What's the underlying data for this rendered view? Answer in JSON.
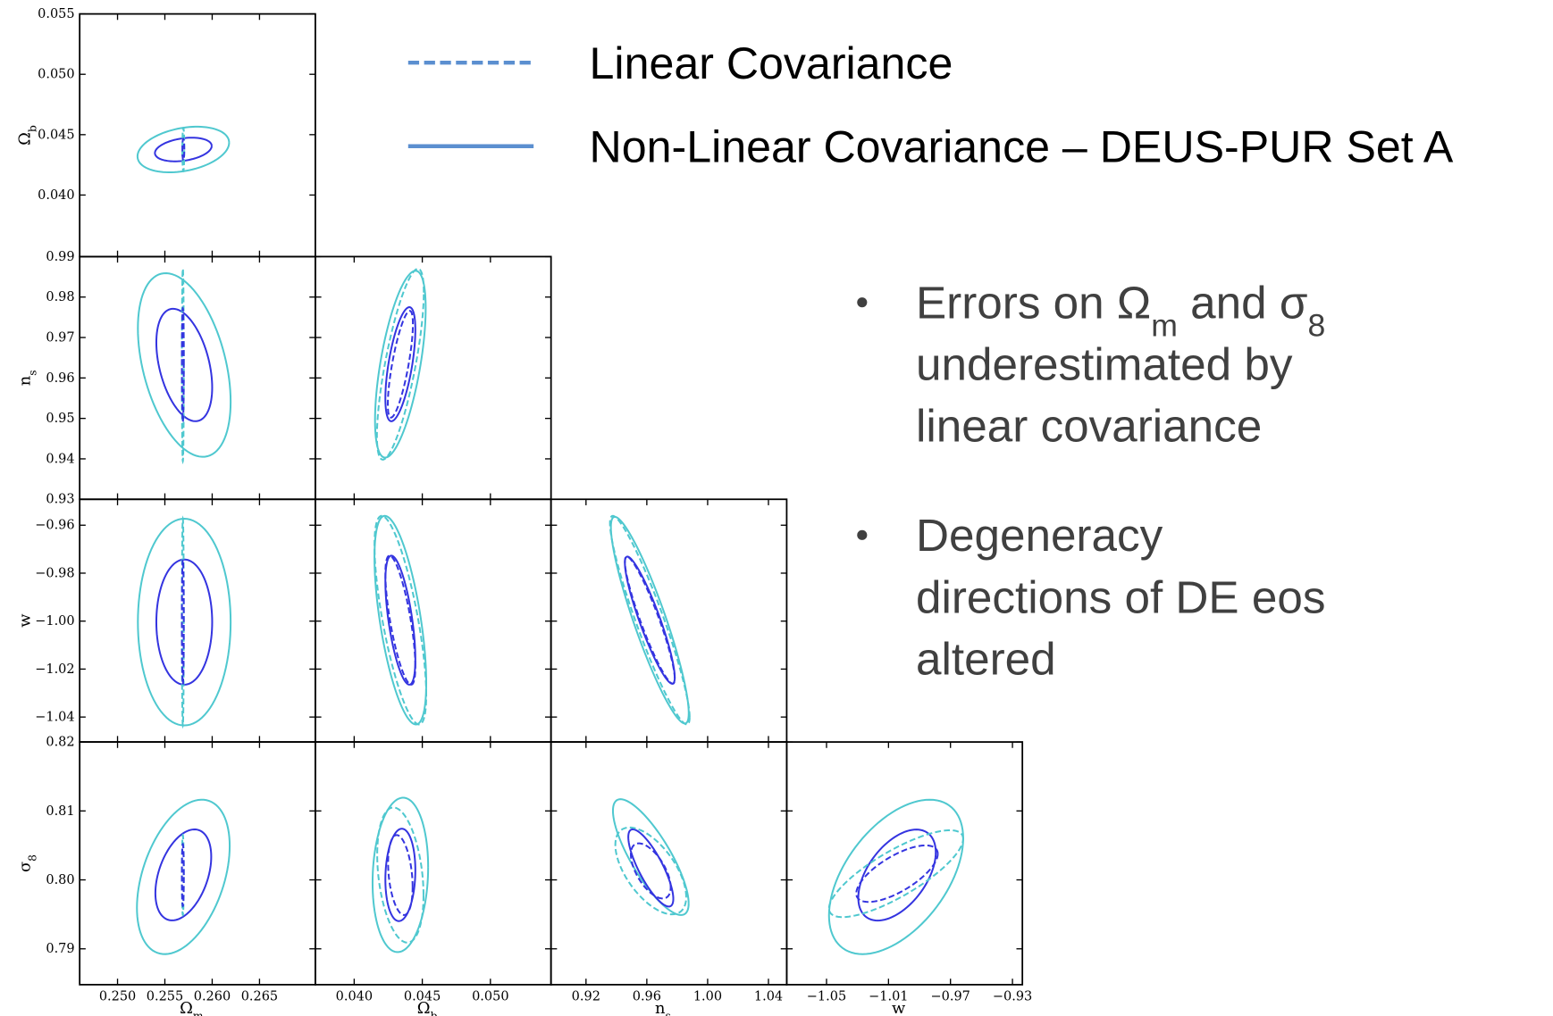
{
  "chart_data": {
    "type": "triangle",
    "series": [
      {
        "name": "Linear Covariance",
        "color": "#5b8fd0",
        "style": "dashed"
      },
      {
        "name": "Non-Linear Covariance – DEUS-PUR Set A",
        "color": "#5b8fd0",
        "style": "solid"
      }
    ],
    "params": [
      {
        "label": {
          "base": "Ω",
          "sub": "m"
        },
        "xlim": [
          0.246,
          0.2709
        ],
        "xticks": [
          {
            "value": 0.25,
            "label": "0.250"
          },
          0.255,
          {
            "value": 0.26,
            "label": "0.260"
          },
          0.265
        ]
      },
      {
        "label": {
          "base": "Ω",
          "sub": "b"
        },
        "xlim": [
          0.03715,
          0.05445
        ],
        "ylim": [
          0.0349,
          0.055
        ],
        "xticks": [
          {
            "value": 0.04,
            "label": "0.040"
          },
          0.045,
          {
            "value": 0.05,
            "label": "0.050"
          }
        ],
        "yticks": [
          {
            "value": 0.04,
            "label": "0.040"
          },
          0.045,
          {
            "value": 0.05,
            "label": "0.050"
          },
          0.055
        ]
      },
      {
        "label": {
          "base": "n",
          "sub": "s"
        },
        "xlim": [
          0.897,
          1.052
        ],
        "ylim": [
          0.93,
          0.99
        ],
        "xticks": [
          0.92,
          0.96,
          {
            "value": 1.0,
            "label": "1.00"
          },
          1.04
        ],
        "yticks": [
          0.93,
          0.94,
          0.95,
          0.96,
          0.97,
          0.98,
          0.99
        ]
      },
      {
        "label": {
          "base": "w",
          "sub": ""
        },
        "xlim": [
          -1.0757,
          -0.9236
        ],
        "ylim": [
          -1.0504,
          -0.9492
        ],
        "xticks": [
          {
            "value": -1.05,
            "label": "−1.05"
          },
          {
            "value": -1.01,
            "label": "−1.01"
          },
          {
            "value": -0.97,
            "label": "−0.97"
          },
          {
            "value": -0.93,
            "label": "−0.93"
          }
        ],
        "yticks": [
          {
            "value": -1.04,
            "label": "−1.04"
          },
          {
            "value": -1.02,
            "label": "−1.02"
          },
          {
            "value": -1.0,
            "label": "−1.00"
          },
          {
            "value": -0.98,
            "label": "−0.98"
          },
          {
            "value": -0.96,
            "label": "−0.96"
          }
        ]
      },
      {
        "label": {
          "base": "σ",
          "sub": "8"
        },
        "ylim": [
          0.7848,
          0.82
        ],
        "yticks": [
          0.79,
          {
            "value": 0.8,
            "label": "0.80"
          },
          0.81,
          0.82
        ]
      }
    ],
    "panels": [
      {
        "x": 0,
        "y": 1,
        "contours": [
          {
            "series": 1,
            "color": "#4fc8cf",
            "cx": 0.25695,
            "cy": 0.04377,
            "dx": 0.00484,
            "dy": 0.00189,
            "rho": 0.3
          },
          {
            "series": 1,
            "color": "#3434e0",
            "cx": 0.25695,
            "cy": 0.04377,
            "dx": 0.003,
            "dy": 0.00098,
            "rho": 0.3
          },
          {
            "series": 0,
            "color": "#4fc8cf",
            "cx": 0.25695,
            "cy": 0.04377,
            "dx": 0.0001,
            "dy": 0.0018,
            "rho": 0
          },
          {
            "series": 0,
            "color": "#3434e0",
            "cx": 0.25695,
            "cy": 0.04377,
            "dx": 0.0001,
            "dy": 0.0009,
            "rho": 0
          }
        ]
      },
      {
        "x": 0,
        "y": 2,
        "contours": [
          {
            "series": 1,
            "color": "#4fc8cf",
            "cx": 0.25705,
            "cy": 0.9632,
            "dx": 0.0049,
            "dy": 0.0227,
            "rho": -0.4
          },
          {
            "series": 1,
            "color": "#3434e0",
            "cx": 0.25705,
            "cy": 0.9632,
            "dx": 0.00295,
            "dy": 0.0139,
            "rho": -0.4
          },
          {
            "series": 0,
            "color": "#4fc8cf",
            "cx": 0.2569,
            "cy": 0.9632,
            "dx": 0.0001,
            "dy": 0.0238,
            "rho": 0
          },
          {
            "series": 0,
            "color": "#3434e0",
            "cx": 0.2569,
            "cy": 0.9632,
            "dx": 0.0001,
            "dy": 0.014,
            "rho": 0
          }
        ]
      },
      {
        "x": 1,
        "y": 2,
        "contours": [
          {
            "series": 1,
            "color": "#4fc8cf",
            "cx": 0.04339,
            "cy": 0.9634,
            "dx": 0.00186,
            "dy": 0.0231,
            "rho": 0.6
          },
          {
            "series": 1,
            "color": "#3434e0",
            "cx": 0.04339,
            "cy": 0.9634,
            "dx": 0.0011,
            "dy": 0.0141,
            "rho": 0.6
          },
          {
            "series": 0,
            "color": "#4fc8cf",
            "cx": 0.04339,
            "cy": 0.9634,
            "dx": 0.00172,
            "dy": 0.0236,
            "rho": 0.75
          },
          {
            "series": 0,
            "color": "#3434e0",
            "cx": 0.04339,
            "cy": 0.9634,
            "dx": 0.00092,
            "dy": 0.0132,
            "rho": 0.75
          }
        ]
      },
      {
        "x": 0,
        "y": 3,
        "contours": [
          {
            "series": 1,
            "color": "#4fc8cf",
            "cx": 0.25705,
            "cy": -1.0004,
            "dx": 0.0049,
            "dy": 0.0431,
            "rho": 0
          },
          {
            "series": 1,
            "color": "#3434e0",
            "cx": 0.25705,
            "cy": -1.0004,
            "dx": 0.00295,
            "dy": 0.0261,
            "rho": 0
          },
          {
            "series": 0,
            "color": "#4fc8cf",
            "cx": 0.2569,
            "cy": -1.0004,
            "dx": 0.0001,
            "dy": 0.0431,
            "rho": 0
          },
          {
            "series": 0,
            "color": "#3434e0",
            "cx": 0.2569,
            "cy": -1.0004,
            "dx": 0.0001,
            "dy": 0.0261,
            "rho": 0
          }
        ]
      },
      {
        "x": 1,
        "y": 3,
        "contours": [
          {
            "series": 1,
            "color": "#4fc8cf",
            "cx": 0.04339,
            "cy": -0.9996,
            "dx": 0.0019,
            "dy": 0.0435,
            "rho": -0.6
          },
          {
            "series": 1,
            "color": "#3434e0",
            "cx": 0.04339,
            "cy": -0.9996,
            "dx": 0.0011,
            "dy": 0.0269,
            "rho": -0.6
          },
          {
            "series": 0,
            "color": "#4fc8cf",
            "cx": 0.04339,
            "cy": -0.9996,
            "dx": 0.0019,
            "dy": 0.0435,
            "rho": -0.72
          },
          {
            "series": 0,
            "color": "#3434e0",
            "cx": 0.04339,
            "cy": -0.9996,
            "dx": 0.0011,
            "dy": 0.0269,
            "rho": -0.72
          }
        ]
      },
      {
        "x": 2,
        "y": 3,
        "contours": [
          {
            "series": 1,
            "color": "#4fc8cf",
            "cx": 0.96197,
            "cy": -0.9996,
            "dx": 0.0256,
            "dy": 0.0431,
            "rho": -0.9
          },
          {
            "series": 1,
            "color": "#3434e0",
            "cx": 0.96197,
            "cy": -0.9996,
            "dx": 0.0164,
            "dy": 0.0265,
            "rho": -0.9
          },
          {
            "series": 0,
            "color": "#4fc8cf",
            "cx": 0.96197,
            "cy": -0.9996,
            "dx": 0.0262,
            "dy": 0.0435,
            "rho": -0.93
          },
          {
            "series": 0,
            "color": "#3434e0",
            "cx": 0.96197,
            "cy": -0.9996,
            "dx": 0.0164,
            "dy": 0.0265,
            "rho": -0.92
          }
        ]
      },
      {
        "x": 0,
        "y": 4,
        "contours": [
          {
            "series": 1,
            "color": "#4fc8cf",
            "cx": 0.25695,
            "cy": 0.80043,
            "dx": 0.0049,
            "dy": 0.0112,
            "rho": 0.4
          },
          {
            "series": 1,
            "color": "#3434e0",
            "cx": 0.25695,
            "cy": 0.80072,
            "dx": 0.00295,
            "dy": 0.0066,
            "rho": 0.4
          },
          {
            "series": 0,
            "color": "#4fc8cf",
            "cx": 0.2569,
            "cy": 0.8007,
            "dx": 0.0001,
            "dy": 0.0058,
            "rho": 0
          },
          {
            "series": 0,
            "color": "#3434e0",
            "cx": 0.2569,
            "cy": 0.8007,
            "dx": 0.0001,
            "dy": 0.0045,
            "rho": 0
          }
        ]
      },
      {
        "x": 1,
        "y": 4,
        "contours": [
          {
            "series": 1,
            "color": "#4fc8cf",
            "cx": 0.04339,
            "cy": 0.80072,
            "dx": 0.00204,
            "dy": 0.0112,
            "rho": 0.1
          },
          {
            "series": 1,
            "color": "#3434e0",
            "cx": 0.04339,
            "cy": 0.80072,
            "dx": 0.0011,
            "dy": 0.0067,
            "rho": 0.1
          },
          {
            "series": 0,
            "color": "#4fc8cf",
            "cx": 0.04339,
            "cy": 0.8007,
            "dx": 0.0017,
            "dy": 0.0098,
            "rho": -0.3
          },
          {
            "series": 0,
            "color": "#3434e0",
            "cx": 0.04339,
            "cy": 0.8007,
            "dx": 0.0009,
            "dy": 0.0058,
            "rho": -0.3
          }
        ]
      },
      {
        "x": 2,
        "y": 4,
        "contours": [
          {
            "series": 1,
            "color": "#4fc8cf",
            "cx": 0.96262,
            "cy": 0.8033,
            "dx": 0.0249,
            "dy": 0.0084,
            "rho": -0.8
          },
          {
            "series": 1,
            "color": "#3434e0",
            "cx": 0.96262,
            "cy": 0.80173,
            "dx": 0.0148,
            "dy": 0.0056,
            "rho": -0.8
          },
          {
            "series": 0,
            "color": "#4fc8cf",
            "cx": 0.9626,
            "cy": 0.8013,
            "dx": 0.0233,
            "dy": 0.0063,
            "rho": -0.6
          },
          {
            "series": 0,
            "color": "#3434e0",
            "cx": 0.9626,
            "cy": 0.8013,
            "dx": 0.0131,
            "dy": 0.004,
            "rho": -0.6
          }
        ]
      },
      {
        "x": 3,
        "y": 4,
        "contours": [
          {
            "series": 1,
            "color": "#4fc8cf",
            "cx": -1.0051,
            "cy": 0.80043,
            "dx": 0.0433,
            "dy": 0.0112,
            "rho": 0.5
          },
          {
            "series": 1,
            "color": "#3434e0",
            "cx": -1.0045,
            "cy": 0.8007,
            "dx": 0.025,
            "dy": 0.0066,
            "rho": 0.5
          },
          {
            "series": 0,
            "color": "#4fc8cf",
            "cx": -1.0051,
            "cy": 0.8009,
            "dx": 0.0433,
            "dy": 0.0063,
            "rho": 0.8
          },
          {
            "series": 0,
            "color": "#3434e0",
            "cx": -1.0045,
            "cy": 0.8009,
            "dx": 0.0263,
            "dy": 0.0041,
            "rho": 0.7
          }
        ]
      }
    ]
  },
  "notes": [
    {
      "lines": [
        [
          {
            "text": "Errors on Ω",
            "sub": "m"
          },
          {
            "text": " and σ",
            "sub": "8"
          }
        ],
        [
          {
            "text": "underestimated by"
          }
        ],
        [
          {
            "text": "linear covariance"
          }
        ]
      ]
    },
    {
      "lines": [
        [
          {
            "text": "Degeneracy"
          }
        ],
        [
          {
            "text": "directions of DE eos"
          }
        ],
        [
          {
            "text": "altered"
          }
        ]
      ]
    }
  ]
}
